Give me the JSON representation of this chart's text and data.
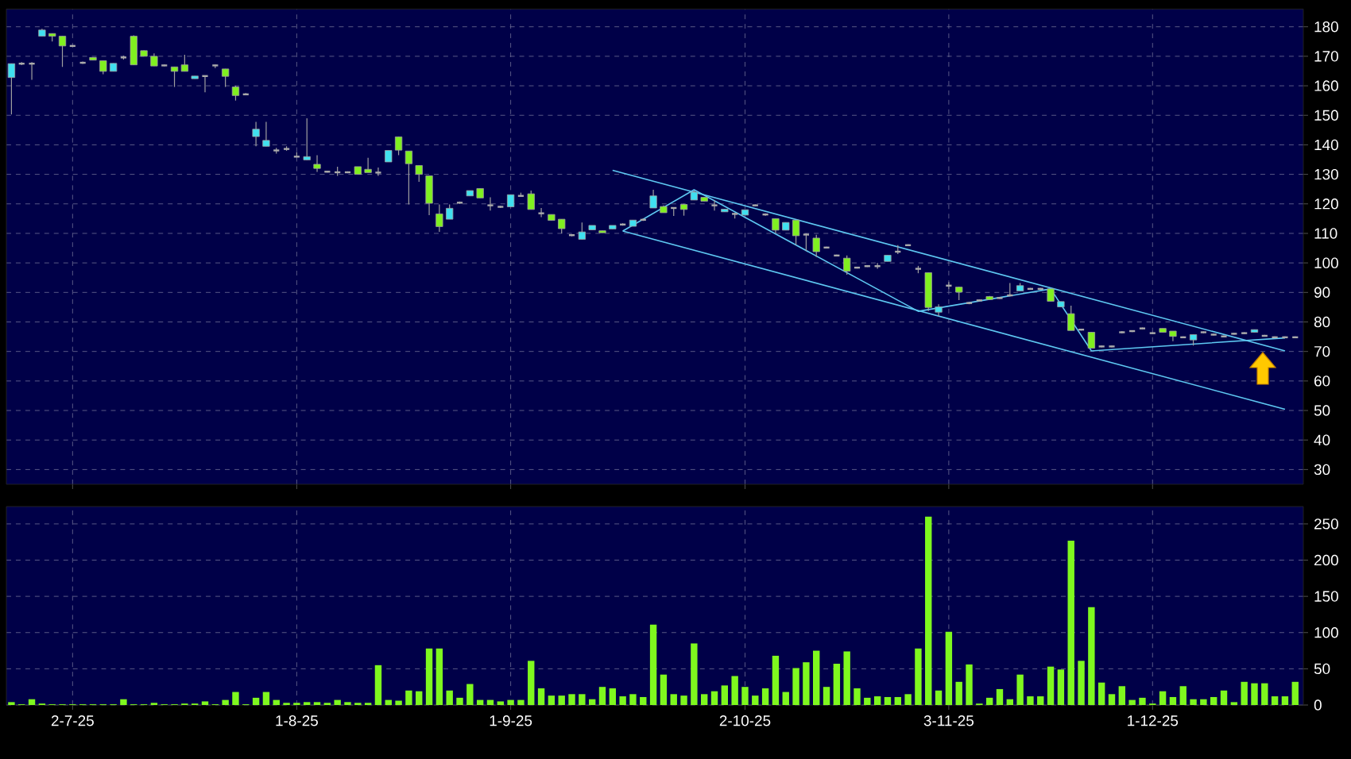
{
  "chart_data": [
    {
      "type": "candlestick",
      "categories": [
        null,
        null,
        null,
        null,
        null,
        null,
        null,
        null,
        null,
        null,
        null,
        null,
        null,
        null,
        null,
        null,
        null,
        null,
        null,
        null,
        null,
        null,
        null,
        null,
        null,
        null,
        null,
        null,
        null,
        null,
        null,
        null,
        null,
        null,
        null,
        null,
        null,
        null,
        null,
        null,
        null,
        null,
        null,
        null,
        null,
        null,
        null,
        null,
        null,
        null,
        null,
        null,
        null,
        null,
        null,
        null,
        null,
        null,
        null,
        null,
        null,
        null,
        null,
        null,
        null,
        null,
        null,
        null,
        null,
        null,
        null,
        null,
        null,
        null,
        null,
        null,
        null,
        null,
        null,
        null,
        null,
        null,
        null,
        null,
        null,
        null,
        null,
        null,
        null,
        null,
        null,
        null,
        null,
        null,
        null,
        null,
        null,
        null,
        null,
        null,
        null,
        null,
        null,
        null,
        null,
        null,
        null,
        null,
        null,
        null,
        null,
        null,
        null,
        null,
        null,
        null,
        null,
        null,
        null,
        null,
        null,
        null,
        null,
        null,
        null,
        null,
        null
      ],
      "ohlc": [
        [
          162.8,
          167.5,
          150.3,
          167.5
        ],
        [
          167.5,
          168,
          167,
          167.5
        ],
        [
          167.5,
          168,
          162,
          167.5
        ],
        [
          176.8,
          179.3,
          176.8,
          178.9
        ],
        [
          177.7,
          177.7,
          175,
          176.8
        ],
        [
          176.8,
          176.8,
          166.4,
          173.5
        ],
        [
          173.5,
          173.8,
          173.2,
          173.5
        ],
        [
          167.8,
          168.2,
          167.4,
          167.8
        ],
        [
          169.6,
          169.6,
          168.7,
          168.7
        ],
        [
          168.5,
          168.5,
          163.9,
          164.9
        ],
        [
          164.9,
          167.6,
          164.9,
          167.6
        ],
        [
          169.6,
          170.2,
          168.9,
          169.6
        ],
        [
          176.8,
          177.1,
          167.1,
          167.1
        ],
        [
          171.9,
          172,
          170,
          170
        ],
        [
          170,
          171,
          166.7,
          166.7
        ],
        [
          166.9,
          167.2,
          166.6,
          166.9
        ],
        [
          166.4,
          166.4,
          159.6,
          164.9
        ],
        [
          167.1,
          170.5,
          164.9,
          164.9
        ],
        [
          162.4,
          163.3,
          162.4,
          163.3
        ],
        [
          163.3,
          163.3,
          157.8,
          163.3
        ],
        [
          166.9,
          167.2,
          166,
          166.9
        ],
        [
          165.7,
          165.7,
          159.6,
          163.2
        ],
        [
          159.6,
          160,
          155,
          156.7
        ],
        [
          157.1,
          157.5,
          156.8,
          157.1
        ],
        [
          142.8,
          147.8,
          139.5,
          145.3
        ],
        [
          139.5,
          147.8,
          139.5,
          141.5
        ],
        [
          138.1,
          139,
          137,
          138.1
        ],
        [
          138.6,
          139.5,
          138,
          138.6
        ],
        [
          136,
          137.5,
          136,
          136
        ],
        [
          134.9,
          149,
          134.9,
          136
        ],
        [
          133.4,
          136.5,
          130.8,
          132
        ],
        [
          130.9,
          131.2,
          130.6,
          130.9
        ],
        [
          130.7,
          132.6,
          129.5,
          130.7
        ],
        [
          130.7,
          131,
          130.4,
          130.7
        ],
        [
          132.6,
          132.6,
          130,
          130
        ],
        [
          131.7,
          135.6,
          130.6,
          130.6
        ],
        [
          130.6,
          132.3,
          129.5,
          130.6
        ],
        [
          134.2,
          138.1,
          134.2,
          138.1
        ],
        [
          142.7,
          142.8,
          136.5,
          138.2
        ],
        [
          137.9,
          137.9,
          119.8,
          133.6
        ],
        [
          133,
          133,
          127.5,
          130
        ],
        [
          129.5,
          129.5,
          116.2,
          120.2
        ],
        [
          116.6,
          119.8,
          110.5,
          112.3
        ],
        [
          114.8,
          119.8,
          114.8,
          118.5
        ],
        [
          120.4,
          120.8,
          120,
          120.4
        ],
        [
          122.7,
          124.5,
          122.7,
          124.5
        ],
        [
          125.2,
          125.2,
          122,
          122
        ],
        [
          119.5,
          122.2,
          117.7,
          119.5
        ],
        [
          119,
          119.4,
          118.6,
          119
        ],
        [
          119,
          123.1,
          119,
          123.1
        ],
        [
          122.7,
          123.8,
          122.4,
          122.7
        ],
        [
          123.4,
          124.5,
          118.1,
          118.1
        ],
        [
          116.8,
          118.6,
          115.5,
          116.8
        ],
        [
          116.4,
          116.4,
          114.4,
          114.4
        ],
        [
          114.8,
          114.8,
          110,
          111.6
        ],
        [
          109.4,
          109.8,
          109,
          109.4
        ],
        [
          108,
          113.7,
          108,
          110.5
        ],
        [
          111.2,
          112.7,
          111.2,
          112.7
        ],
        [
          110.9,
          110.9,
          110.2,
          110.2
        ],
        [
          111.5,
          112.7,
          111.5,
          112.7
        ],
        [
          113,
          113.4,
          112.6,
          113
        ],
        [
          112.4,
          114.5,
          112.4,
          114.5
        ],
        [
          114.6,
          115,
          114.2,
          114.6
        ],
        [
          118.6,
          124.8,
          118.6,
          122.7
        ],
        [
          119.1,
          119.5,
          117,
          117
        ],
        [
          118.6,
          118.6,
          115.9,
          118.6
        ],
        [
          119.8,
          120,
          116,
          118.1
        ],
        [
          121.3,
          124.5,
          121.3,
          124
        ],
        [
          122.2,
          122.2,
          120.9,
          120.9
        ],
        [
          119.5,
          121.3,
          117.7,
          119.5
        ],
        [
          117.3,
          118.2,
          117.3,
          118.2
        ],
        [
          116.6,
          117,
          115,
          116.6
        ],
        [
          116.2,
          118,
          116.2,
          118
        ],
        [
          119.5,
          119.8,
          119.2,
          119.5
        ],
        [
          116.4,
          116.8,
          116,
          116.4
        ],
        [
          115,
          115,
          110,
          111.1
        ],
        [
          111.1,
          113.7,
          111.1,
          113.7
        ],
        [
          114.5,
          114.5,
          106,
          109.2
        ],
        [
          109.6,
          110,
          104,
          109.6
        ],
        [
          108.4,
          109.5,
          102,
          103.8
        ],
        [
          105.2,
          105.5,
          104.9,
          105.2
        ],
        [
          102.5,
          102.8,
          102.2,
          102.5
        ],
        [
          101.6,
          102.5,
          96,
          97.2
        ],
        [
          98.4,
          98.7,
          98.1,
          98.4
        ],
        [
          98.9,
          99.2,
          98.6,
          98.9
        ],
        [
          98.9,
          100,
          98,
          98.9
        ],
        [
          100.5,
          102.6,
          100.5,
          102.6
        ],
        [
          103.8,
          106,
          103,
          103.8
        ],
        [
          106,
          106.3,
          105.7,
          106
        ],
        [
          98,
          99,
          96.5,
          98
        ],
        [
          96.7,
          96.7,
          83.7,
          84.9
        ],
        [
          83.3,
          86,
          82,
          85.1
        ],
        [
          92.3,
          93.5,
          91,
          92.3
        ],
        [
          91.8,
          92,
          87.4,
          90.1
        ],
        [
          86.4,
          86.8,
          86,
          86.4
        ],
        [
          87.3,
          87.6,
          87,
          87.3
        ],
        [
          88.6,
          88.8,
          87.6,
          87.6
        ],
        [
          88.1,
          88.4,
          87.8,
          88.1
        ],
        [
          89,
          93.2,
          88.7,
          89
        ],
        [
          90.5,
          93.2,
          90.5,
          92.3
        ],
        [
          91.2,
          91.5,
          90.9,
          91.2
        ],
        [
          91.2,
          91.5,
          90.9,
          91.2
        ],
        [
          91.2,
          91.2,
          87,
          87
        ],
        [
          85.1,
          86.9,
          85.1,
          86.9
        ],
        [
          82.8,
          85.5,
          77.1,
          77.1
        ],
        [
          77.4,
          77.7,
          77.1,
          77.4
        ],
        [
          76.5,
          76.5,
          71.1,
          71.1
        ],
        [
          71.7,
          72,
          71.4,
          71.7
        ],
        [
          71.7,
          72,
          71.4,
          71.7
        ],
        [
          76.5,
          76.9,
          76.1,
          76.5
        ],
        [
          76.9,
          77.2,
          76.6,
          76.9
        ],
        [
          77.8,
          78.1,
          77.5,
          77.8
        ],
        [
          76.2,
          76.5,
          75.9,
          76.2
        ],
        [
          77.8,
          77.8,
          76.5,
          76.5
        ],
        [
          76.9,
          76.9,
          73.5,
          75.1
        ],
        [
          74.8,
          75.1,
          74.5,
          74.8
        ],
        [
          73.9,
          75.7,
          72,
          75.7
        ],
        [
          76.5,
          76.8,
          76.2,
          76.5
        ],
        [
          75.7,
          76,
          75.4,
          75.7
        ],
        [
          75.1,
          75.4,
          74.8,
          75.1
        ],
        [
          76,
          76.3,
          75.7,
          76
        ],
        [
          76.2,
          76.5,
          75.9,
          76.2
        ],
        [
          76.5,
          77.4,
          76.5,
          77.4
        ],
        [
          75.3,
          75.6,
          75,
          75.3
        ],
        [
          74.8,
          75.1,
          74.5,
          74.8
        ],
        [
          74.8,
          75.1,
          74.5,
          74.8
        ],
        [
          74.8,
          75.1,
          74.5,
          74.8
        ]
      ],
      "series": [
        {
          "type": "line",
          "color": "#5ec8f2",
          "values": [
            null,
            null,
            null,
            null,
            null,
            null,
            null,
            null,
            null,
            null,
            null,
            null,
            null,
            null,
            null,
            null,
            null,
            null,
            null,
            null,
            null,
            null,
            null,
            null,
            null,
            null,
            null,
            null,
            null,
            null,
            null,
            null,
            null,
            null,
            null,
            null,
            null,
            null,
            null,
            null,
            null,
            null,
            null,
            null,
            null,
            null,
            null,
            null,
            null,
            null,
            null,
            null,
            null,
            null,
            null,
            null,
            null,
            null,
            null,
            131.4,
            null,
            null,
            null,
            null,
            null,
            null,
            null,
            null,
            null,
            null,
            null,
            null,
            null,
            null,
            null,
            null,
            null,
            null,
            null,
            null,
            null,
            null,
            null,
            null,
            null,
            null,
            null,
            null,
            null,
            null,
            null,
            null,
            null,
            null,
            null,
            null,
            null,
            null,
            null,
            null,
            null,
            null,
            null,
            null,
            null,
            null,
            null,
            null,
            null,
            null,
            null,
            null,
            null,
            null,
            null,
            null,
            null,
            null,
            null,
            null,
            null,
            null,
            null,
            null,
            null,
            70.2,
            null
          ]
        },
        {
          "type": "line",
          "color": "#5ec8f2",
          "values": [
            null,
            null,
            null,
            null,
            null,
            null,
            null,
            null,
            null,
            null,
            null,
            null,
            null,
            null,
            null,
            null,
            null,
            null,
            null,
            null,
            null,
            null,
            null,
            null,
            null,
            null,
            null,
            null,
            null,
            null,
            null,
            null,
            null,
            null,
            null,
            null,
            null,
            null,
            null,
            null,
            null,
            null,
            null,
            null,
            null,
            null,
            null,
            null,
            null,
            null,
            null,
            null,
            null,
            null,
            null,
            null,
            null,
            null,
            null,
            null,
            110.8,
            null,
            null,
            null,
            null,
            null,
            null,
            null,
            null,
            null,
            null,
            null,
            null,
            null,
            null,
            null,
            null,
            null,
            null,
            null,
            null,
            null,
            null,
            null,
            null,
            null,
            null,
            null,
            null,
            null,
            null,
            null,
            null,
            null,
            null,
            null,
            null,
            null,
            null,
            null,
            null,
            null,
            null,
            null,
            null,
            null,
            null,
            null,
            null,
            null,
            null,
            null,
            null,
            null,
            null,
            null,
            null,
            null,
            null,
            null,
            null,
            null,
            null,
            null,
            null,
            50.4,
            null
          ]
        },
        {
          "type": "line",
          "color": "#5ec8f2",
          "values": [
            null,
            null,
            null,
            null,
            null,
            null,
            null,
            null,
            null,
            null,
            null,
            null,
            null,
            null,
            null,
            null,
            null,
            null,
            null,
            null,
            null,
            null,
            null,
            null,
            null,
            null,
            null,
            null,
            null,
            null,
            null,
            null,
            null,
            null,
            null,
            null,
            null,
            null,
            null,
            null,
            null,
            null,
            null,
            null,
            null,
            null,
            null,
            null,
            null,
            null,
            null,
            null,
            null,
            null,
            null,
            null,
            null,
            null,
            null,
            null,
            110.8,
            null,
            null,
            null,
            null,
            null,
            null,
            124.8,
            null,
            null,
            null,
            null,
            null,
            null,
            null,
            null,
            null,
            null,
            null,
            null,
            null,
            null,
            null,
            null,
            null,
            null,
            null,
            null,
            null,
            83.6,
            null,
            null,
            null,
            null,
            null,
            null,
            null,
            null,
            null,
            null,
            null,
            null,
            91.2,
            null,
            null,
            null,
            70.2,
            null,
            null,
            null,
            null,
            null,
            null,
            null,
            null,
            null,
            null,
            null,
            null,
            null,
            null,
            null,
            null,
            null,
            null,
            74.6,
            null
          ]
        }
      ],
      "ylim": [
        25,
        186
      ],
      "yticks": [
        30,
        40,
        50,
        60,
        70,
        80,
        90,
        100,
        110,
        120,
        130,
        140,
        150,
        160,
        170,
        180
      ],
      "grid": true,
      "tick_labels": "y"
    },
    {
      "type": "bar",
      "categories": [
        null,
        null,
        null,
        null,
        null,
        null,
        "2-7-25",
        null,
        null,
        null,
        null,
        null,
        null,
        null,
        null,
        null,
        null,
        null,
        null,
        null,
        null,
        null,
        null,
        null,
        null,
        null,
        null,
        null,
        "1-8-25",
        null,
        null,
        null,
        null,
        null,
        null,
        null,
        null,
        null,
        null,
        null,
        null,
        null,
        null,
        null,
        null,
        null,
        null,
        null,
        null,
        "1-9-25",
        null,
        null,
        null,
        null,
        null,
        null,
        null,
        null,
        null,
        null,
        null,
        null,
        null,
        null,
        null,
        null,
        null,
        null,
        null,
        null,
        null,
        null,
        "2-10-25",
        null,
        null,
        null,
        null,
        null,
        null,
        null,
        null,
        null,
        null,
        null,
        null,
        null,
        null,
        null,
        null,
        null,
        null,
        null,
        "3-11-25",
        null,
        null,
        null,
        null,
        null,
        null,
        null,
        null,
        null,
        null,
        null,
        null,
        null,
        null,
        null,
        null,
        null,
        null,
        null,
        "1-12-25",
        null,
        null,
        null,
        null,
        null,
        null,
        null,
        null,
        null,
        null,
        null,
        null,
        null,
        null
      ],
      "values": [
        4,
        1,
        8,
        2,
        1,
        1,
        1,
        1,
        1,
        1,
        1,
        8,
        1,
        1,
        3,
        1,
        1,
        2,
        2,
        5,
        1,
        7,
        18,
        1,
        10,
        18,
        7,
        3,
        3,
        4,
        4,
        3,
        7,
        4,
        3,
        3,
        55,
        7,
        6,
        20,
        19,
        78,
        78,
        20,
        10,
        29,
        7,
        7,
        5,
        7,
        7,
        61,
        23,
        13,
        13,
        15,
        15,
        8,
        25,
        23,
        12,
        15,
        11,
        111,
        42,
        15,
        13,
        85,
        15,
        19,
        27,
        40,
        25,
        13,
        23,
        68,
        18,
        51,
        59,
        75,
        25,
        57,
        74,
        23,
        10,
        12,
        11,
        11,
        15,
        78,
        260,
        20,
        101,
        32,
        56,
        2,
        10,
        22,
        8,
        42,
        12,
        12,
        53,
        49,
        227,
        61,
        135,
        31,
        15,
        26,
        7,
        10,
        2,
        19,
        11,
        26,
        8,
        8,
        11,
        20,
        4,
        32,
        30,
        30,
        12,
        12,
        32
      ],
      "color": "#7ff81e",
      "ylim": [
        0,
        274
      ],
      "yticks": [
        0,
        50,
        100,
        150,
        200,
        250
      ],
      "grid": true
    }
  ]
}
